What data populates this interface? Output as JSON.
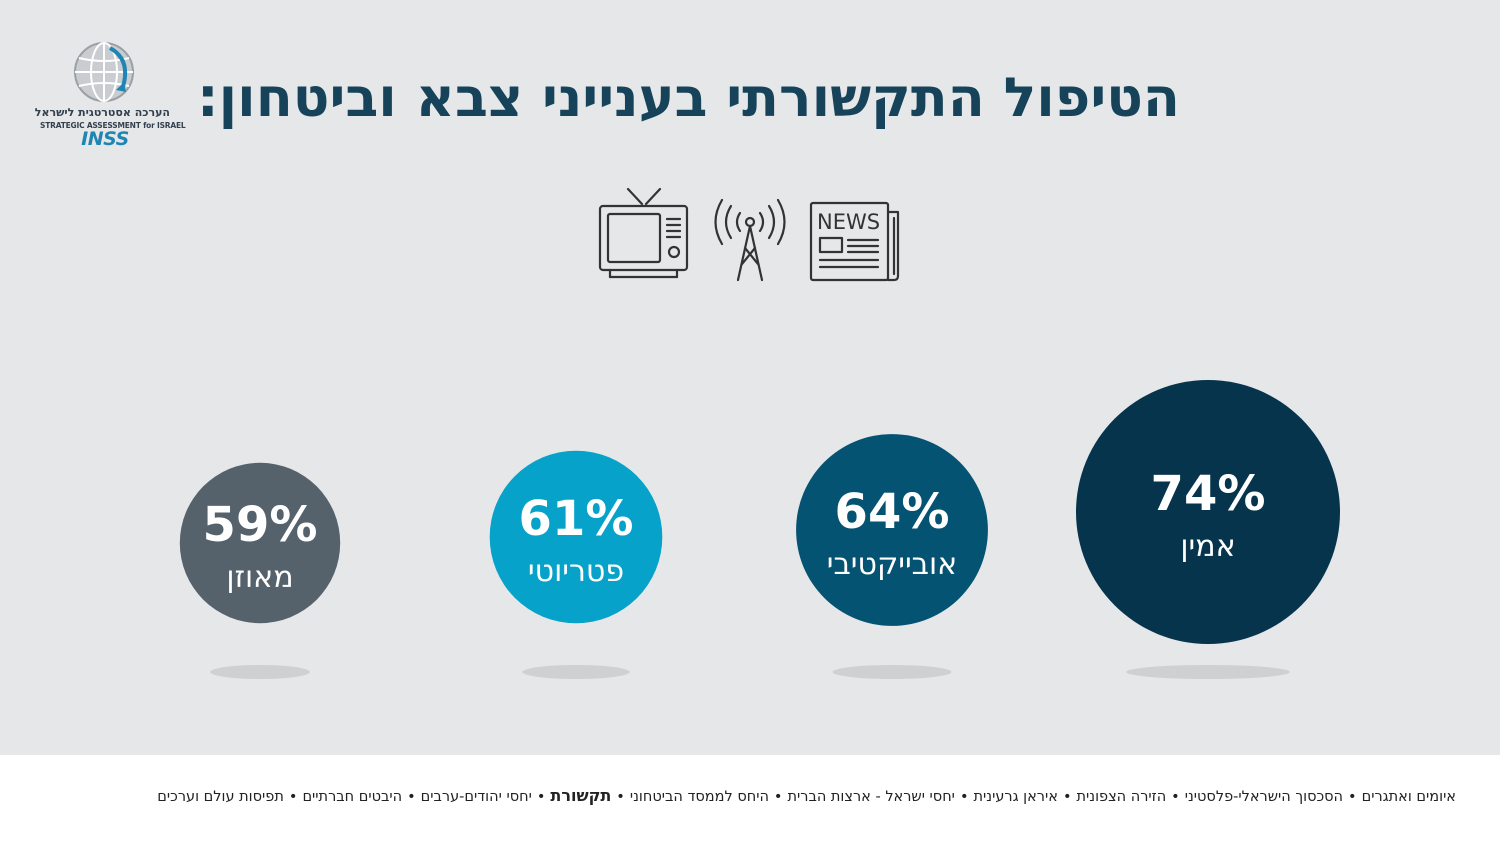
{
  "logo": {
    "hebrew": "הערכה אסטרטגית לישראל",
    "english": "STRATEGIC ASSESSMENT for ISRAEL",
    "inss": "INSS"
  },
  "title": "הטיפול התקשורתי בענייני צבא וביטחון:",
  "icons": [
    "tv-icon",
    "broadcast-tower-icon",
    "newspaper-icon"
  ],
  "newspaper_label": "NEWS",
  "chart_data": {
    "type": "bubble",
    "categories": [
      "אמין",
      "אובייקטיבי",
      "פטריוטי",
      "מאוזן"
    ],
    "values": [
      74,
      64,
      61,
      59
    ],
    "value_labels": [
      "74%",
      "64%",
      "61%",
      "59%"
    ],
    "colors": [
      "#06344d",
      "#045373",
      "#06a2c9",
      "#55626c"
    ],
    "shadow_color": "#cfd0d2"
  },
  "footer": {
    "topics": [
      {
        "label": "איומים ואתגרים",
        "active": false
      },
      {
        "label": "הסכסוך הישראלי-פלסטיני",
        "active": false
      },
      {
        "label": "הזירה הצפונית",
        "active": false
      },
      {
        "label": "איראן גרעינית",
        "active": false
      },
      {
        "label": "יחסי ישראל - ארצות הברית",
        "active": false
      },
      {
        "label": "היחס לממסד הביטחוני",
        "active": false
      },
      {
        "label": "תקשורת",
        "active": true
      },
      {
        "label": "יחסי יהודים-ערבים",
        "active": false
      },
      {
        "label": "היבטים חברתיים",
        "active": false
      },
      {
        "label": "תפיסות עולם וערכים",
        "active": false
      }
    ],
    "separator": "•"
  }
}
